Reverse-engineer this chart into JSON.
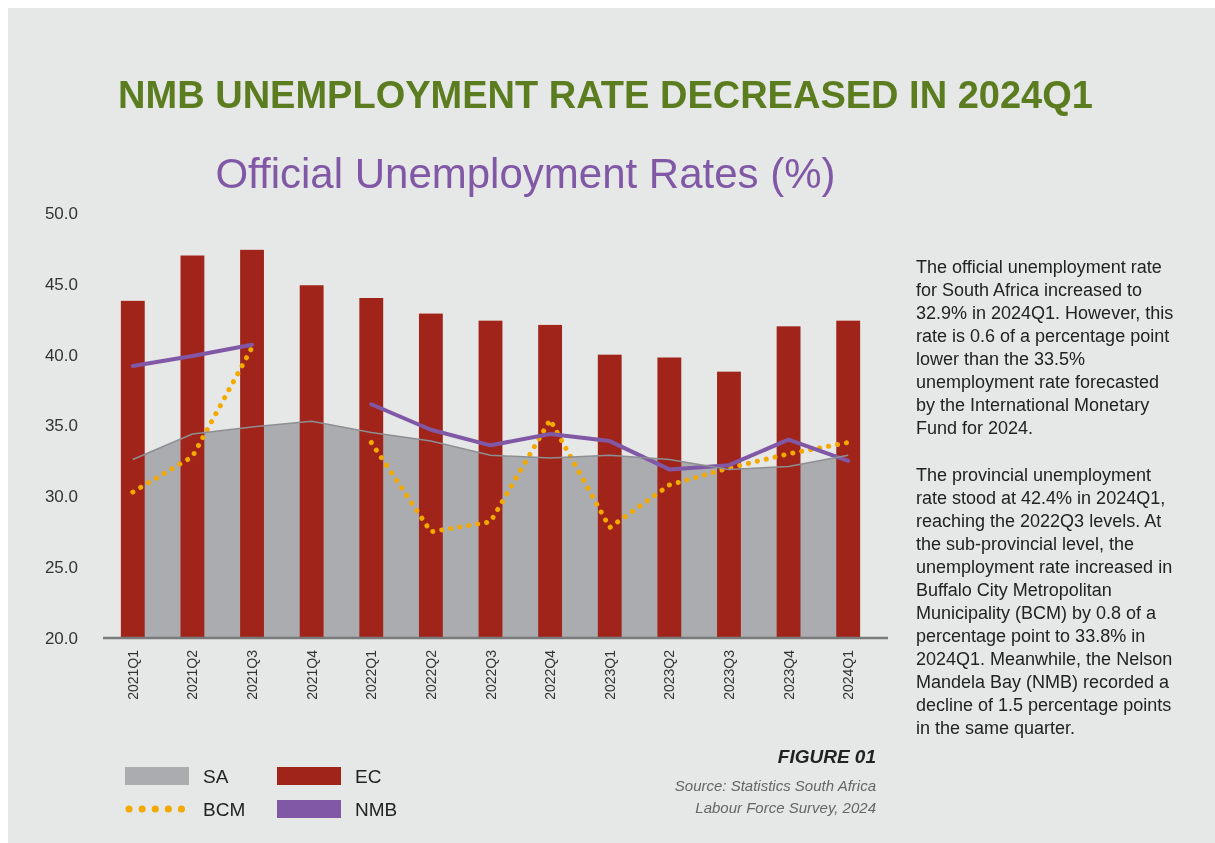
{
  "chart_data": {
    "type": "bar",
    "title": "NMB UNEMPLOYMENT RATE DECREASED IN 2024Q1",
    "subtitle": "Official Unemployment Rates (%)",
    "categories": [
      "2021Q1",
      "2021Q2",
      "2021Q3",
      "2021Q4",
      "2022Q1",
      "2022Q2",
      "2022Q3",
      "2022Q4",
      "2023Q1",
      "2023Q2",
      "2023Q3",
      "2023Q4",
      "2024Q1"
    ],
    "series": [
      {
        "name": "SA",
        "type": "area",
        "color": "#abacb0",
        "values": [
          32.6,
          34.4,
          34.9,
          35.3,
          34.5,
          33.9,
          32.9,
          32.7,
          32.9,
          32.6,
          31.9,
          32.1,
          32.9
        ]
      },
      {
        "name": "EC",
        "color": "#a0241a",
        "values": [
          43.8,
          47.0,
          47.4,
          44.9,
          44.0,
          42.9,
          42.4,
          42.1,
          40.0,
          39.8,
          38.8,
          42.0,
          42.4
        ]
      },
      {
        "name": "BCM",
        "type": "line",
        "line_style": "dotted",
        "color": "#f2a900",
        "values": [
          30.3,
          32.8,
          40.5,
          null,
          33.8,
          27.5,
          28.2,
          35.4,
          27.8,
          30.8,
          32.0,
          33.0,
          33.8
        ]
      },
      {
        "name": "NMB",
        "type": "line",
        "line_style": "solid",
        "color": "#8158a6",
        "values": [
          39.2,
          39.9,
          40.7,
          null,
          36.5,
          34.7,
          33.6,
          34.4,
          33.9,
          31.9,
          32.2,
          34.0,
          32.5
        ]
      }
    ],
    "ylim": [
      20,
      50
    ],
    "yticks": [
      {
        "value": 20,
        "label": "20.0"
      },
      {
        "value": 25,
        "label": "25.0"
      },
      {
        "value": 30,
        "label": "30.0"
      },
      {
        "value": 35,
        "label": "35.0"
      },
      {
        "value": 40,
        "label": "40.0"
      },
      {
        "value": 45,
        "label": "45.0"
      },
      {
        "value": 50,
        "label": "50.0"
      }
    ],
    "grid": false,
    "legend": "bottom",
    "annotations": [
      "The official unemployment rate for South Africa increased to 32.9% in 2024Q1. However, this rate is 0.6 of a percentage point lower than the 33.5% unemployment rate forecasted by the International Monetary Fund for 2024.",
      "The provincial unemployment rate stood at 42.4% in 2024Q1, reaching the 2022Q3 levels. At the sub-provincial level, the unemployment rate increased in Buffalo City Metropolitan Municipality (BCM) by 0.8 of a percentage point to 33.8% in 2024Q1. Meanwhile, the Nelson Mandela Bay (NMB) recorded a decline of 1.5 percentage points in the same quarter.",
      "FIGURE 01",
      "Source: Statistics South Africa Labour Force Survey, 2024"
    ]
  }
}
